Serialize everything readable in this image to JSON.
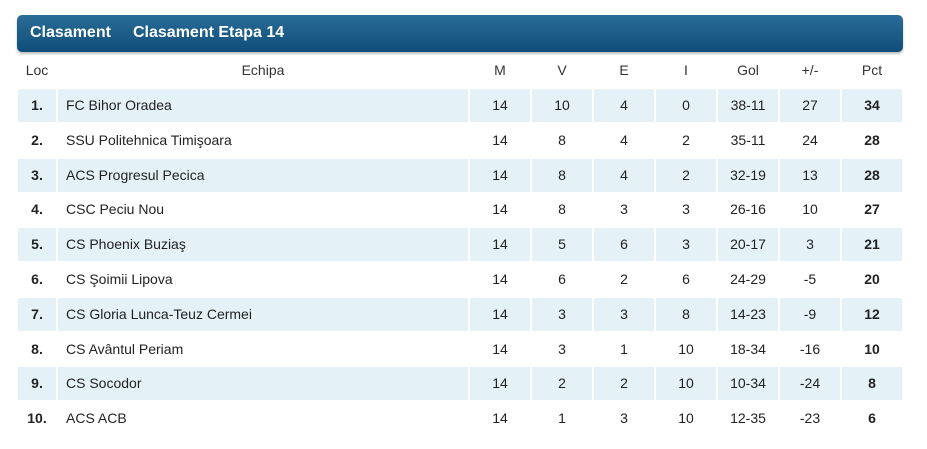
{
  "header": {
    "tabs": [
      "Clasament",
      "Clasament Etapa 14"
    ]
  },
  "table": {
    "columns": [
      "Loc",
      "Echipa",
      "M",
      "V",
      "E",
      "I",
      "Gol",
      "+/-",
      "Pct"
    ],
    "rows": [
      [
        "1.",
        "FC Bihor Oradea",
        14,
        10,
        4,
        0,
        "38-11",
        27,
        34
      ],
      [
        "2.",
        "SSU Politehnica Timişoara",
        14,
        8,
        4,
        2,
        "35-11",
        24,
        28
      ],
      [
        "3.",
        "ACS Progresul Pecica",
        14,
        8,
        4,
        2,
        "32-19",
        13,
        28
      ],
      [
        "4.",
        "CSC Peciu Nou",
        14,
        8,
        3,
        3,
        "26-16",
        10,
        27
      ],
      [
        "5.",
        "CS Phoenix Buziaş",
        14,
        5,
        6,
        3,
        "20-17",
        3,
        21
      ],
      [
        "6.",
        "CS Şoimii Lipova",
        14,
        6,
        2,
        6,
        "24-29",
        -5,
        20
      ],
      [
        "7.",
        "CS Gloria Lunca-Teuz Cermei",
        14,
        3,
        3,
        8,
        "14-23",
        -9,
        12
      ],
      [
        "8.",
        "CS Avântul Periam",
        14,
        3,
        1,
        10,
        "18-34",
        -16,
        10
      ],
      [
        "9.",
        "CS Socodor",
        14,
        2,
        2,
        10,
        "10-34",
        -24,
        8
      ],
      [
        "10.",
        "ACS ACB",
        14,
        1,
        3,
        10,
        "12-35",
        -23,
        6
      ]
    ]
  }
}
